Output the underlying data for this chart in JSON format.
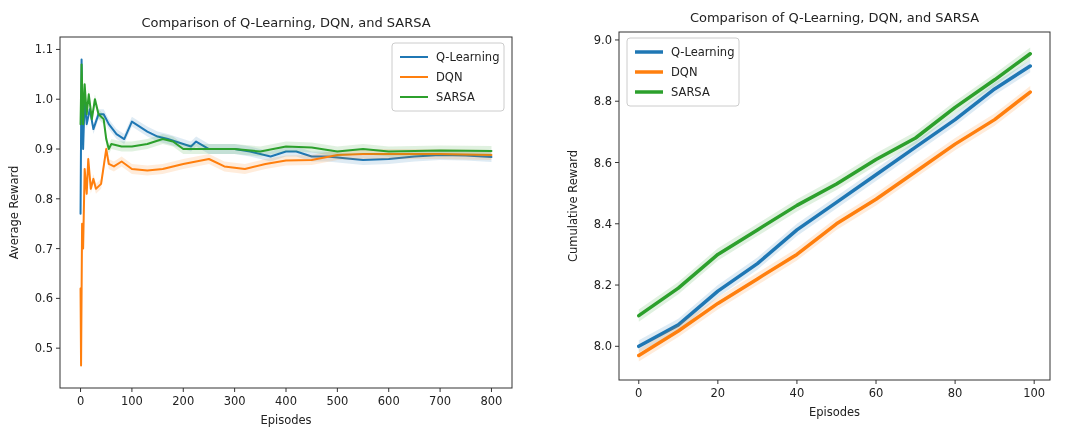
{
  "chart_data": [
    {
      "type": "line",
      "title": "Comparison of Q-Learning, DQN, and SARSA",
      "xlabel": "Episodes",
      "ylabel": "Average Reward",
      "xlim": [
        -40,
        840
      ],
      "ylim": [
        0.42,
        1.125
      ],
      "xticks": [
        0,
        100,
        200,
        300,
        400,
        500,
        600,
        700,
        800
      ],
      "yticks": [
        0.5,
        0.6,
        0.7,
        0.8,
        0.9,
        {
          "value": 1,
          "label": "1.0"
        },
        1.1
      ],
      "grid": false,
      "legend": "top right",
      "series": [
        {
          "name": "Q-Learning",
          "color": "#1f77b4",
          "x": [
            0,
            2,
            5,
            8,
            12,
            18,
            25,
            35,
            45,
            55,
            70,
            85,
            100,
            115,
            130,
            150,
            170,
            200,
            215,
            225,
            250,
            300,
            330,
            370,
            400,
            420,
            450,
            480,
            550,
            600,
            650,
            700,
            750,
            800
          ],
          "values": [
            0.77,
            1.08,
            0.9,
            1.0,
            0.95,
            0.98,
            0.94,
            0.97,
            0.97,
            0.95,
            0.93,
            0.92,
            0.955,
            0.945,
            0.935,
            0.925,
            0.92,
            0.91,
            0.905,
            0.915,
            0.9,
            0.9,
            0.895,
            0.885,
            0.895,
            0.895,
            0.885,
            0.885,
            0.878,
            0.88,
            0.885,
            0.888,
            0.887,
            0.884
          ],
          "lower": [
            0.76,
            1.07,
            0.89,
            0.99,
            0.94,
            0.97,
            0.93,
            0.96,
            0.96,
            0.94,
            0.92,
            0.91,
            0.945,
            0.935,
            0.925,
            0.915,
            0.91,
            0.9,
            0.895,
            0.905,
            0.89,
            0.89,
            0.885,
            0.875,
            0.885,
            0.885,
            0.875,
            0.875,
            0.868,
            0.87,
            0.875,
            0.878,
            0.877,
            0.874
          ],
          "upper": [
            0.78,
            1.09,
            0.91,
            1.01,
            0.96,
            0.99,
            0.95,
            0.98,
            0.98,
            0.96,
            0.94,
            0.93,
            0.965,
            0.955,
            0.945,
            0.935,
            0.93,
            0.92,
            0.915,
            0.925,
            0.91,
            0.91,
            0.905,
            0.895,
            0.905,
            0.905,
            0.895,
            0.895,
            0.888,
            0.89,
            0.895,
            0.898,
            0.897,
            0.894
          ]
        },
        {
          "name": "DQN",
          "color": "#ff7f0e",
          "x": [
            0,
            1,
            3,
            5,
            8,
            12,
            15,
            20,
            25,
            30,
            40,
            50,
            55,
            65,
            80,
            100,
            130,
            160,
            200,
            250,
            280,
            320,
            360,
            400,
            450,
            500,
            550,
            600,
            700,
            800
          ],
          "values": [
            0.62,
            0.465,
            0.75,
            0.7,
            0.86,
            0.81,
            0.88,
            0.82,
            0.84,
            0.82,
            0.83,
            0.9,
            0.87,
            0.865,
            0.875,
            0.86,
            0.857,
            0.86,
            0.87,
            0.88,
            0.865,
            0.86,
            0.87,
            0.877,
            0.878,
            0.888,
            0.89,
            0.89,
            0.89,
            0.888
          ],
          "lower": [
            0.61,
            0.455,
            0.74,
            0.69,
            0.85,
            0.8,
            0.87,
            0.81,
            0.83,
            0.81,
            0.82,
            0.89,
            0.86,
            0.855,
            0.865,
            0.85,
            0.847,
            0.85,
            0.86,
            0.87,
            0.855,
            0.85,
            0.86,
            0.867,
            0.868,
            0.878,
            0.88,
            0.88,
            0.88,
            0.878
          ],
          "upper": [
            0.63,
            0.475,
            0.76,
            0.71,
            0.87,
            0.82,
            0.89,
            0.83,
            0.85,
            0.83,
            0.84,
            0.91,
            0.88,
            0.875,
            0.885,
            0.87,
            0.867,
            0.87,
            0.88,
            0.89,
            0.875,
            0.87,
            0.88,
            0.887,
            0.888,
            0.898,
            0.9,
            0.9,
            0.9,
            0.898
          ]
        },
        {
          "name": "SARSA",
          "color": "#2ca02c",
          "x": [
            0,
            2,
            5,
            8,
            12,
            16,
            22,
            28,
            35,
            45,
            50,
            55,
            60,
            80,
            100,
            130,
            160,
            180,
            200,
            250,
            300,
            350,
            400,
            450,
            500,
            550,
            600,
            700,
            800
          ],
          "values": [
            0.95,
            1.07,
            0.95,
            1.03,
            0.97,
            1.01,
            0.96,
            1.0,
            0.97,
            0.96,
            0.92,
            0.9,
            0.91,
            0.905,
            0.905,
            0.91,
            0.92,
            0.915,
            0.9,
            0.9,
            0.9,
            0.895,
            0.905,
            0.903,
            0.895,
            0.9,
            0.895,
            0.897,
            0.896
          ],
          "lower": [
            0.94,
            1.06,
            0.94,
            1.02,
            0.96,
            1.0,
            0.95,
            0.99,
            0.96,
            0.95,
            0.91,
            0.89,
            0.9,
            0.895,
            0.895,
            0.9,
            0.91,
            0.905,
            0.89,
            0.89,
            0.89,
            0.885,
            0.895,
            0.893,
            0.885,
            0.89,
            0.885,
            0.887,
            0.886
          ],
          "upper": [
            0.96,
            1.08,
            0.96,
            1.04,
            0.98,
            1.02,
            0.97,
            1.01,
            0.98,
            0.97,
            0.93,
            0.91,
            0.92,
            0.915,
            0.915,
            0.92,
            0.93,
            0.925,
            0.91,
            0.91,
            0.91,
            0.905,
            0.915,
            0.913,
            0.905,
            0.91,
            0.905,
            0.907,
            0.906
          ]
        }
      ]
    },
    {
      "type": "line",
      "title": "Comparison of Q-Learning, DQN, and SARSA",
      "xlabel": "Episodes",
      "ylabel": "Cumulative Reward",
      "xlim": [
        -5,
        104
      ],
      "ylim": [
        7.89,
        9.026
      ],
      "xticks": [
        0,
        20,
        40,
        60,
        80,
        100
      ],
      "yticks": [
        {
          "value": 8,
          "label": "8.0"
        },
        8.2,
        8.4,
        8.6,
        8.8,
        {
          "value": 9,
          "label": "9.0"
        }
      ],
      "grid": false,
      "legend": "top left",
      "series": [
        {
          "name": "Q-Learning",
          "color": "#1f77b4",
          "x": [
            0,
            10,
            20,
            30,
            40,
            50,
            60,
            70,
            80,
            90,
            99
          ],
          "values": [
            8.0,
            8.07,
            8.18,
            8.27,
            8.38,
            8.47,
            8.56,
            8.65,
            8.74,
            8.84,
            8.915
          ],
          "lower": [
            7.98,
            8.05,
            8.16,
            8.25,
            8.36,
            8.45,
            8.54,
            8.63,
            8.72,
            8.82,
            8.895
          ],
          "upper": [
            8.02,
            8.09,
            8.2,
            8.29,
            8.4,
            8.49,
            8.58,
            8.67,
            8.76,
            8.86,
            8.935
          ]
        },
        {
          "name": "DQN",
          "color": "#ff7f0e",
          "x": [
            0,
            10,
            20,
            30,
            40,
            50,
            60,
            70,
            80,
            90,
            99
          ],
          "values": [
            7.97,
            8.05,
            8.14,
            8.22,
            8.3,
            8.4,
            8.48,
            8.57,
            8.66,
            8.74,
            8.83
          ],
          "lower": [
            7.95,
            8.03,
            8.12,
            8.2,
            8.28,
            8.38,
            8.46,
            8.55,
            8.64,
            8.72,
            8.81
          ],
          "upper": [
            7.99,
            8.07,
            8.16,
            8.24,
            8.32,
            8.42,
            8.5,
            8.59,
            8.68,
            8.76,
            8.85
          ]
        },
        {
          "name": "SARSA",
          "color": "#2ca02c",
          "x": [
            0,
            10,
            20,
            30,
            40,
            50,
            60,
            70,
            80,
            90,
            99
          ],
          "values": [
            8.1,
            8.19,
            8.3,
            8.38,
            8.46,
            8.53,
            8.61,
            8.68,
            8.78,
            8.87,
            8.955
          ],
          "lower": [
            8.08,
            8.17,
            8.28,
            8.36,
            8.44,
            8.51,
            8.59,
            8.66,
            8.76,
            8.85,
            8.935
          ],
          "upper": [
            8.12,
            8.21,
            8.32,
            8.4,
            8.48,
            8.55,
            8.63,
            8.7,
            8.8,
            8.89,
            8.975
          ]
        }
      ]
    }
  ]
}
